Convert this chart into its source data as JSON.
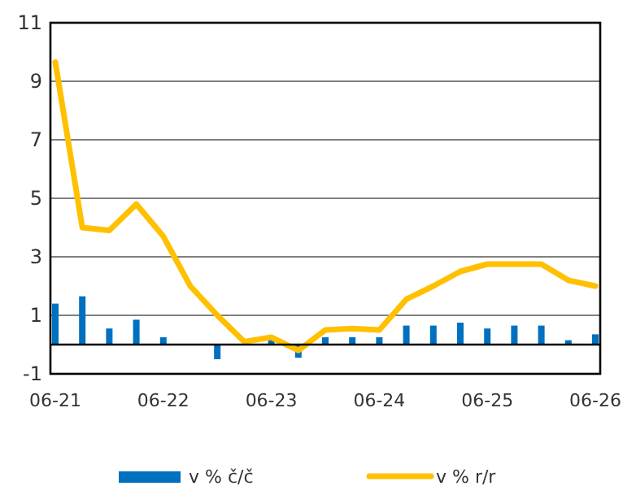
{
  "chart_data": {
    "type": "bar",
    "categories": [
      "06-21",
      null,
      null,
      null,
      "06-22",
      null,
      null,
      null,
      "06-23",
      null,
      null,
      null,
      "06-24",
      null,
      null,
      null,
      "06-25",
      null,
      null,
      null,
      "06-26"
    ],
    "series": [
      {
        "name": "v % č/č",
        "color": "#0070c0",
        "values": [
          1.4,
          1.65,
          0.55,
          0.85,
          0.25,
          0,
          -0.5,
          0,
          0.2,
          -0.45,
          0.25,
          0.25,
          0.25,
          0.65,
          0.65,
          0.75,
          0.55,
          0.65,
          0.65,
          0.15,
          0.35
        ]
      },
      {
        "name": "v % r/r",
        "type": "line",
        "color": "#ffc000",
        "values": [
          9.65,
          4.0,
          3.9,
          4.8,
          3.7,
          2.0,
          1.0,
          0.1,
          0.25,
          -0.2,
          0.5,
          0.55,
          0.5,
          1.55,
          2.0,
          2.5,
          2.75,
          2.75,
          2.75,
          2.2,
          2.0
        ]
      }
    ],
    "ylim": [
      -1,
      11
    ],
    "yticks": [
      -1,
      1,
      3,
      5,
      7,
      9,
      11
    ],
    "grid": "y",
    "legend": "bottom"
  }
}
